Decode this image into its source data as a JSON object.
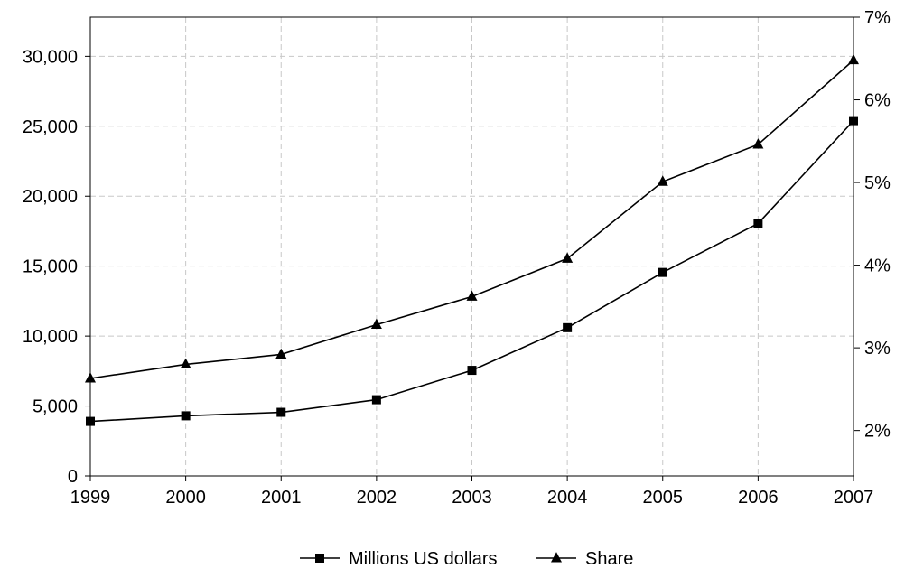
{
  "chart_data": {
    "type": "line",
    "categories": [
      "1999",
      "2000",
      "2001",
      "2002",
      "2003",
      "2004",
      "2005",
      "2006",
      "2007"
    ],
    "series": [
      {
        "name": "Millions US dollars",
        "axis": "left",
        "marker": "square",
        "values": [
          3900,
          4300,
          4550,
          5450,
          7550,
          10600,
          14550,
          18050,
          25400
        ]
      },
      {
        "name": "Share",
        "axis": "right",
        "marker": "triangle",
        "unit": "%",
        "values": [
          2.63,
          2.8,
          2.92,
          3.28,
          3.62,
          4.08,
          5.01,
          5.46,
          6.48
        ]
      }
    ],
    "y_left": {
      "ylim": [
        0,
        32800
      ],
      "ticks": [
        0,
        5000,
        10000,
        15000,
        20000,
        25000,
        30000
      ],
      "tick_labels": [
        "0",
        "5,000",
        "10,000",
        "15,000",
        "20,000",
        "25,000",
        "30,000"
      ]
    },
    "y_right": {
      "ylim": [
        1.45,
        7.0
      ],
      "ticks": [
        2,
        3,
        4,
        5,
        6,
        7
      ],
      "tick_labels": [
        "2%",
        "3%",
        "4%",
        "5%",
        "6%",
        "7%"
      ]
    },
    "grid": true,
    "legend_position": "bottom-center",
    "colors": {
      "line": "#000000",
      "grid": "#c8c8c8",
      "background": "#ffffff"
    }
  }
}
